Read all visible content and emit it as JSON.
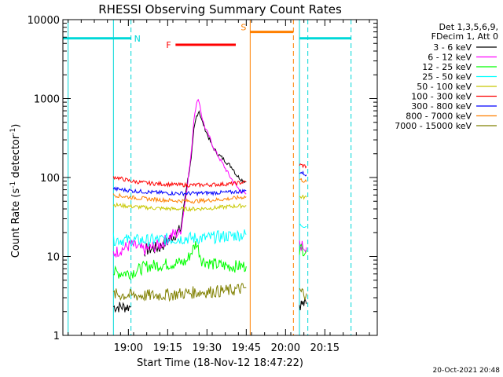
{
  "chart_data": {
    "type": "line",
    "title": "RHESSI Observing Summary Count Rates",
    "xlabel": "Start Time (18-Nov-12 18:47:22)",
    "ylabel": "Count Rate (s⁻¹ detector⁻¹)",
    "ylabel_main": "Count Rate (s",
    "ylabel_sup1": "-1",
    "ylabel_mid": " detector",
    "ylabel_sup2": "-1",
    "ylabel_end": ")",
    "x_range_minutes": [
      -12,
      108
    ],
    "y_scale": "log",
    "ylim": [
      1,
      10000
    ],
    "x_ticks": [
      {
        "t": 13,
        "label": "19:00"
      },
      {
        "t": 28,
        "label": "19:15"
      },
      {
        "t": 43,
        "label": "19:30"
      },
      {
        "t": 58,
        "label": "19:45"
      },
      {
        "t": 73,
        "label": "20:00"
      },
      {
        "t": 88,
        "label": "20:15"
      }
    ],
    "y_ticks": [
      {
        "v": 1,
        "label": "1"
      },
      {
        "v": 10,
        "label": "10"
      },
      {
        "v": 100,
        "label": "100"
      },
      {
        "v": 1000,
        "label": "1000"
      },
      {
        "v": 10000,
        "label": "10000"
      }
    ],
    "legend_position": "right",
    "legend_header": [
      "Det 1,3,5,6,9,",
      "FDecim 1, Att 0"
    ],
    "series": [
      {
        "name": "3 - 6 keV",
        "color": "#000000",
        "segments": [
          [
            [
              7.3,
              2.3
            ],
            [
              14,
              2.3
            ]
          ],
          [
            [
              19,
              12
            ],
            [
              25,
              13
            ],
            [
              30,
              18
            ],
            [
              33,
              22
            ],
            [
              35,
              70
            ],
            [
              37,
              170
            ],
            [
              38,
              400
            ],
            [
              39,
              600
            ],
            [
              40,
              700
            ],
            [
              41,
              530
            ],
            [
              43,
              360
            ],
            [
              45,
              250
            ],
            [
              47,
              200
            ],
            [
              49,
              175
            ],
            [
              51,
              150
            ],
            [
              53,
              130
            ],
            [
              54,
              110
            ],
            [
              56,
              95
            ],
            [
              58,
              88
            ]
          ],
          [
            [
              78.3,
              2.5
            ],
            [
              81,
              2.5
            ]
          ]
        ]
      },
      {
        "name": "6 - 12 keV",
        "color": "#ff00ff",
        "segments": [
          [
            [
              7.3,
              11
            ],
            [
              14,
              14
            ],
            [
              19,
              12
            ],
            [
              25,
              14
            ],
            [
              30,
              19
            ],
            [
              33,
              20
            ],
            [
              35,
              60
            ],
            [
              37,
              200
            ],
            [
              38,
              550
            ],
            [
              39,
              900
            ],
            [
              40,
              950
            ],
            [
              41,
              600
            ],
            [
              42,
              450
            ],
            [
              44,
              320
            ],
            [
              46,
              220
            ],
            [
              48,
              170
            ],
            [
              50,
              130
            ],
            [
              52,
              100
            ],
            [
              54,
              80
            ],
            [
              56,
              66
            ],
            [
              58,
              62
            ]
          ],
          [
            [
              78.3,
              14
            ],
            [
              81,
              13
            ]
          ]
        ]
      },
      {
        "name": "12 - 25 keV",
        "color": "#00ff00",
        "segments": [
          [
            [
              7.3,
              6.2
            ],
            [
              14,
              6.2
            ],
            [
              20,
              7.5
            ],
            [
              28,
              8
            ],
            [
              35,
              8.5
            ],
            [
              39,
              15
            ],
            [
              41,
              9
            ],
            [
              45,
              8
            ],
            [
              52,
              7.5
            ],
            [
              58,
              7.5
            ]
          ],
          [
            [
              78.3,
              12.5
            ],
            [
              81,
              12
            ]
          ]
        ]
      },
      {
        "name": "25 - 50 keV",
        "color": "#00ffff",
        "segments": [
          [
            [
              7.3,
              16.5
            ],
            [
              14,
              16
            ],
            [
              20,
              16
            ],
            [
              28,
              16.5
            ],
            [
              35,
              17
            ],
            [
              42,
              17
            ],
            [
              50,
              18
            ],
            [
              58,
              19
            ]
          ],
          [
            [
              78.3,
              25
            ],
            [
              81,
              24
            ]
          ]
        ]
      },
      {
        "name": "50 - 100 keV",
        "color": "#c8c800",
        "segments": [
          [
            [
              7.3,
              45
            ],
            [
              14,
              43
            ],
            [
              22,
              41
            ],
            [
              30,
              40
            ],
            [
              38,
              40
            ],
            [
              45,
              41
            ],
            [
              52,
              43
            ],
            [
              58,
              44
            ]
          ],
          [
            [
              78.3,
              57
            ],
            [
              81,
              56
            ]
          ]
        ]
      },
      {
        "name": "100 - 300 keV",
        "color": "#ff0000",
        "segments": [
          [
            [
              7.3,
              102
            ],
            [
              14,
              90
            ],
            [
              20,
              85
            ],
            [
              28,
              82
            ],
            [
              36,
              80
            ],
            [
              44,
              81
            ],
            [
              52,
              83
            ],
            [
              58,
              88
            ]
          ],
          [
            [
              78.3,
              145
            ],
            [
              81,
              138
            ]
          ]
        ]
      },
      {
        "name": "300 - 800 keV",
        "color": "#0000ff",
        "segments": [
          [
            [
              7.3,
              72
            ],
            [
              14,
              68
            ],
            [
              22,
              65
            ],
            [
              30,
              63
            ],
            [
              38,
              63
            ],
            [
              46,
              64
            ],
            [
              52,
              65
            ],
            [
              58,
              68
            ]
          ],
          [
            [
              78.3,
              118
            ],
            [
              81,
              108
            ]
          ]
        ]
      },
      {
        "name": "800 - 7000 keV",
        "color": "#ff8000",
        "segments": [
          [
            [
              7.3,
              60
            ],
            [
              14,
              56
            ],
            [
              22,
              53
            ],
            [
              30,
              51
            ],
            [
              38,
              50
            ],
            [
              46,
              52
            ],
            [
              52,
              54
            ],
            [
              58,
              57
            ]
          ],
          [
            [
              78.3,
              95
            ],
            [
              81,
              88
            ]
          ]
        ]
      },
      {
        "name": "7000 - 15000 keV",
        "color": "#808000",
        "segments": [
          [
            [
              7.3,
              3.3
            ],
            [
              14,
              3.2
            ],
            [
              22,
              3.2
            ],
            [
              30,
              3.3
            ],
            [
              38,
              3.5
            ],
            [
              46,
              3.6
            ],
            [
              52,
              3.7
            ],
            [
              58,
              4.0
            ]
          ],
          [
            [
              78.3,
              3.6
            ],
            [
              81,
              3.4
            ]
          ]
        ]
      }
    ],
    "annotations": [
      {
        "label": "N",
        "color": "#00d8d8",
        "t0": -12,
        "t1": 14,
        "y": 5800,
        "kind": "bar"
      },
      {
        "label": "F",
        "color": "#ff0000",
        "t0": 31,
        "t1": 54,
        "y": 4800,
        "kind": "bar"
      },
      {
        "label": "S",
        "color": "#ff8000",
        "t0": 59.5,
        "t1": 76,
        "y": 7000,
        "kind": "bar"
      },
      {
        "label": "",
        "color": "#00d8d8",
        "t0": 78.3,
        "t1": 98,
        "y": 5800,
        "kind": "bar"
      }
    ],
    "cyan_solid_lines": [
      -10,
      7.3,
      78.3
    ],
    "cyan_dashed_lines": [
      14,
      81.5,
      98
    ],
    "orange_solid_lines": [
      59.5
    ],
    "orange_dashed_lines": [
      76
    ]
  },
  "timestamp": "20-Oct-2021 20:48"
}
